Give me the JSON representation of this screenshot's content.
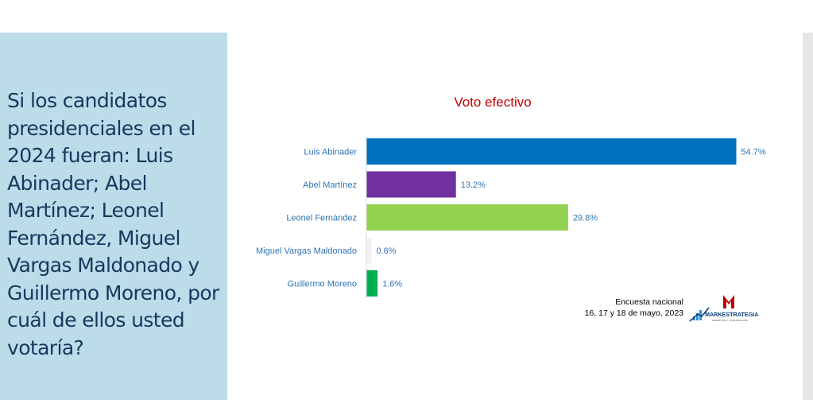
{
  "question": "Si los candidatos presidenciales en el 2024 fueran: Luis Abinader; Abel Martínez; Leonel Fernández, Miguel Vargas Maldonado y Guillermo Moreno, por cuál de ellos usted votaría?",
  "footer": {
    "line1": "Encuesta nacional",
    "line2": "16, 17 y 18 de mayo, 2023"
  },
  "logo": {
    "name": "MARKESTRATEGIA",
    "tagline": "MARKETING Y COMUNICACIÓN"
  },
  "chart_data": {
    "type": "bar",
    "orientation": "horizontal",
    "title": "Voto efectivo",
    "categories": [
      "Luis Abinader",
      "Abel Martínez",
      "Leonel Fernández",
      "Miguel Vargas Maldonado",
      "Guillermo Moreno"
    ],
    "values": [
      54.7,
      13.2,
      29.8,
      0.6,
      1.6
    ],
    "value_labels": [
      "54.7%",
      "13.2%",
      "29.8%",
      "0.6%",
      "1.6%"
    ],
    "colors": [
      "#0070c0",
      "#7030a0",
      "#92d050",
      "#f2f2f2",
      "#00b050"
    ],
    "grid": false,
    "legend": false
  }
}
